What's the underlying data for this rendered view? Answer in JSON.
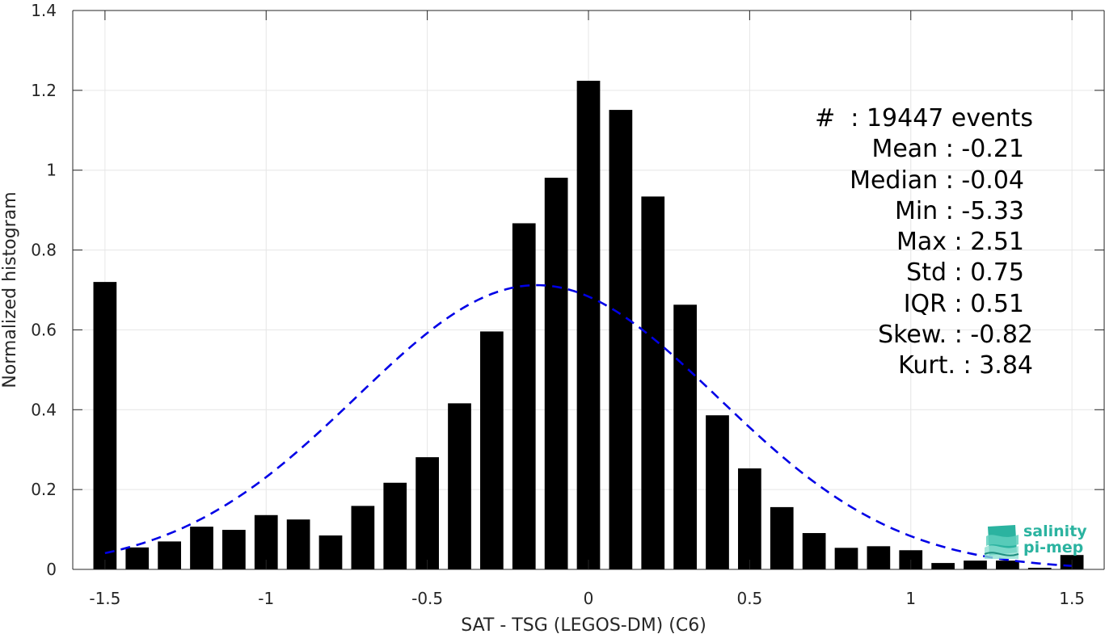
{
  "chart_data": {
    "type": "bar",
    "xlabel": "SAT - TSG (LEGOS-DM) (C6)",
    "ylabel": "Normalized histogram",
    "xlim": [
      -1.6,
      1.6
    ],
    "ylim": [
      0,
      1.4
    ],
    "xticks": [
      -1.5,
      -1,
      -0.5,
      0,
      0.5,
      1,
      1.5
    ],
    "xtick_labels": [
      "-1.5",
      "-1",
      "-0.5",
      "0",
      "0.5",
      "1",
      "1.5"
    ],
    "yticks": [
      0,
      0.2,
      0.4,
      0.6,
      0.8,
      1,
      1.2,
      1.4
    ],
    "ytick_labels": [
      "0",
      "0.2",
      "0.4",
      "0.6",
      "0.8",
      "1",
      "1.2",
      "1.4"
    ],
    "grid": true,
    "bar_color": "#000000",
    "bin_width": 0.1,
    "x": [
      -1.5,
      -1.4,
      -1.3,
      -1.2,
      -1.1,
      -1.0,
      -0.9,
      -0.8,
      -0.7,
      -0.6,
      -0.5,
      -0.4,
      -0.3,
      -0.2,
      -0.1,
      0.0,
      0.1,
      0.2,
      0.3,
      0.4,
      0.5,
      0.6,
      0.7,
      0.8,
      0.9,
      1.0,
      1.1,
      1.2,
      1.3,
      1.4,
      1.5
    ],
    "values": [
      0.72,
      0.055,
      0.07,
      0.107,
      0.099,
      0.136,
      0.125,
      0.085,
      0.159,
      0.217,
      0.281,
      0.416,
      0.596,
      0.867,
      0.981,
      1.224,
      1.151,
      0.934,
      0.663,
      0.386,
      0.253,
      0.156,
      0.091,
      0.054,
      0.058,
      0.048,
      0.016,
      0.022,
      0.022,
      0.004,
      0.036
    ],
    "fit_curve": {
      "style": "dashed",
      "color": "#0000e6",
      "mean": -0.16,
      "std": 0.56,
      "peak": 0.712,
      "x_range": [
        -1.5,
        1.5
      ]
    }
  },
  "stats": [
    {
      "label": "#  ",
      "value": ": 19447 events"
    },
    {
      "label": "Mean ",
      "value": ": -0.21"
    },
    {
      "label": "Median ",
      "value": ": -0.04"
    },
    {
      "label": "Min ",
      "value": ": -5.33"
    },
    {
      "label": "Max ",
      "value": ": 2.51"
    },
    {
      "label": "Std ",
      "value": ": 0.75"
    },
    {
      "label": "IQR ",
      "value": ": 0.51"
    },
    {
      "label": "Skew. ",
      "value": ": -0.82"
    },
    {
      "label": "Kurt. ",
      "value": ": 3.84"
    }
  ],
  "logo": {
    "line1": "salinity",
    "line2": "pi-mep",
    "color": "#2bb3a0"
  }
}
